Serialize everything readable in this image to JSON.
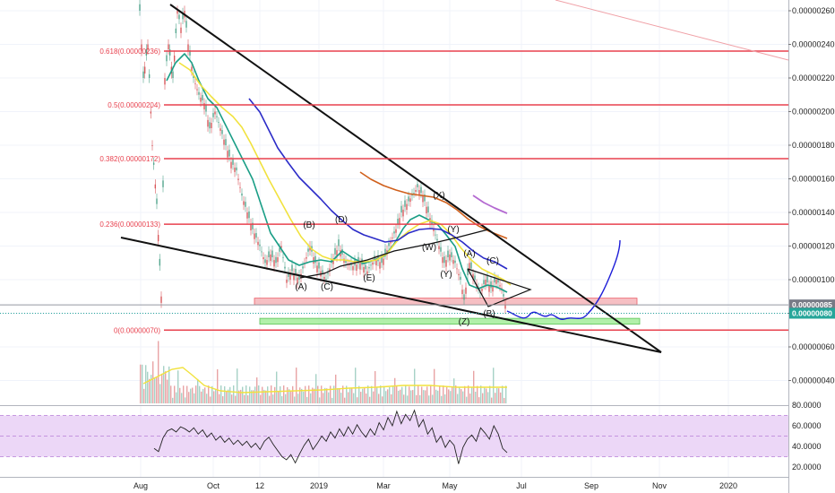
{
  "colors": {
    "fib_line": "#e8414e",
    "support_zone": "#f5b5b9",
    "target_zone": "#a4ee9c",
    "ema_fast": "#1a9e86",
    "ema_mid": "#f1e23e",
    "ma_blue": "#2c2cc8",
    "ma_orange": "#d0601c",
    "ma_purple": "#b46ad1",
    "candle_up": "#52a58d",
    "candle_down": "#d9575b",
    "rsi_band": "#ecd7f7",
    "tag_gray": "#787b86",
    "tag_teal": "#26a69a"
  },
  "chart_data": {
    "type": "line",
    "title": "",
    "y_axis": {
      "ticks": [
        "0.00000260",
        "0.00000240",
        "0.00000220",
        "0.00000200",
        "0.00000180",
        "0.00000160",
        "0.00000140",
        "0.00000120",
        "0.00000100",
        "0.00000080",
        "0.00000060",
        "0.00000040"
      ],
      "range": [
        3.4e-07,
        2.66e-06
      ]
    },
    "x_axis": {
      "ticks": [
        "Aug",
        "Oct",
        "12",
        "2019",
        "Mar",
        "May",
        "Jul",
        "Sep",
        "Nov",
        "2020"
      ]
    },
    "price_tags": [
      {
        "label": "0.00000085",
        "value": 8.5e-07,
        "color": "tag_gray"
      },
      {
        "label": "0.00000080",
        "value": 8e-07,
        "color": "tag_teal"
      }
    ],
    "fib_levels": [
      {
        "label": "0.618(0.00000236)",
        "value": 2.36e-06
      },
      {
        "label": "0.5(0.00000204)",
        "value": 2.04e-06
      },
      {
        "label": "0.382(0.00000172)",
        "value": 1.72e-06
      },
      {
        "label": "0.236(0.00000133)",
        "value": 1.33e-06
      },
      {
        "label": "0(0.00000070)",
        "value": 7e-07
      }
    ],
    "wave_labels": [
      {
        "text": "(A)",
        "x": 336,
        "y": 323
      },
      {
        "text": "(B)",
        "x": 345,
        "y": 254
      },
      {
        "text": "(C)",
        "x": 365,
        "y": 323
      },
      {
        "text": "(D)",
        "x": 381,
        "y": 248
      },
      {
        "text": "(E)",
        "x": 412,
        "y": 313
      },
      {
        "text": "(X)",
        "x": 490,
        "y": 221
      },
      {
        "text": "(W)",
        "x": 479,
        "y": 279
      },
      {
        "text": "(Y)",
        "x": 506,
        "y": 259
      },
      {
        "text": "(Y)",
        "x": 498,
        "y": 309
      },
      {
        "text": "(A)",
        "x": 524,
        "y": 286
      },
      {
        "text": "(C)",
        "x": 550,
        "y": 294
      },
      {
        "text": "(B)",
        "x": 546,
        "y": 353
      },
      {
        "text": "(Z)",
        "x": 518,
        "y": 362
      }
    ],
    "rsi": {
      "ticks": [
        "80.0000",
        "60.0000",
        "40.0000",
        "20.0000"
      ],
      "range": [
        15,
        82
      ],
      "band": [
        30,
        70
      ],
      "values": [
        38,
        35,
        48,
        55,
        57,
        54,
        59,
        57,
        54,
        58,
        52,
        56,
        49,
        53,
        46,
        50,
        44,
        48,
        42,
        46,
        41,
        45,
        39,
        43,
        37,
        45,
        49,
        42,
        36,
        30,
        27,
        32,
        24,
        33,
        41,
        47,
        37,
        43,
        50,
        45,
        54,
        48,
        57,
        50,
        59,
        52,
        61,
        54,
        49,
        57,
        51,
        63,
        56,
        68,
        60,
        74,
        62,
        71,
        65,
        75,
        59,
        66,
        52,
        58,
        44,
        50,
        39,
        46,
        41,
        23,
        39,
        47,
        51,
        45,
        58,
        53,
        47,
        60,
        52,
        38,
        34
      ]
    }
  }
}
